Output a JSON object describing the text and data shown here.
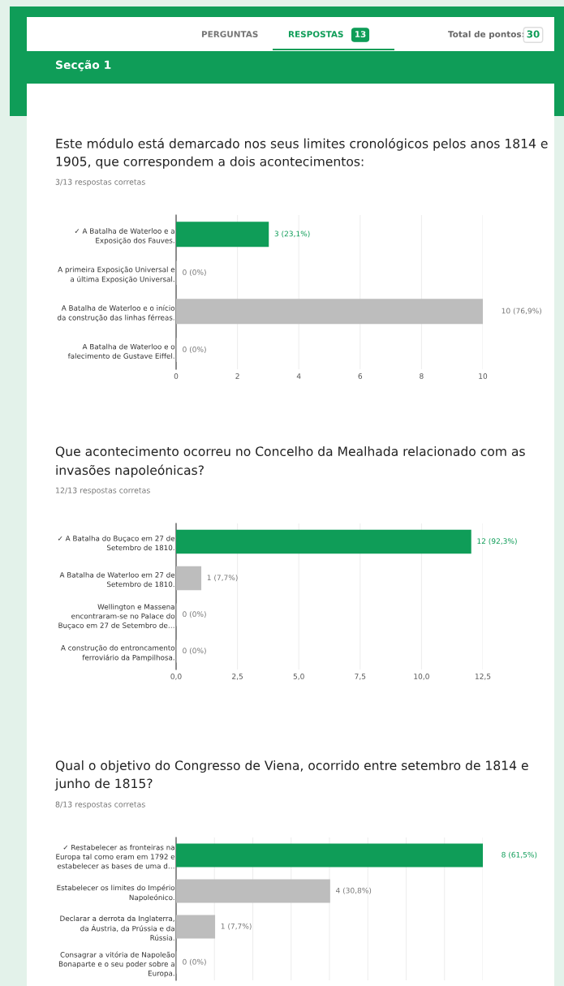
{
  "chart_data": [
    {
      "type": "bar",
      "orientation": "horizontal",
      "title": "Este módulo está demarcado nos seus limites cronológicos pelos anos 1814 e 1905, que correspondem a dois acontecimentos:",
      "subtitle": "3/13 respostas corretas",
      "annotations": [
        "PERGUNTAS",
        "RESPOSTAS",
        "13",
        "Total de pontos:",
        "30",
        "Secção 1"
      ],
      "categories": [
        "✓ A Batalha de Waterloo e a\nExposição dos Fauves.",
        "A primeira Exposição Universal e\na última Exposição Universal.",
        "A Batalha de Waterloo e o início\nda construção das linhas férreas.",
        "A Batalha de Waterloo e o\nfalecimento de Gustave Eiffel."
      ],
      "values": [
        3,
        0,
        10,
        0
      ],
      "colors": [
        "#0f9d58",
        "#bdbdbd",
        "#bdbdbd",
        "#bdbdbd"
      ],
      "value_labels": [
        "3 (23,1%)",
        "0 (0%)",
        "10 (76,9%)",
        "0 (0%)"
      ],
      "xlim": [
        0,
        10
      ],
      "xticks": [
        0,
        2,
        4,
        6,
        8,
        10
      ],
      "grid": "x"
    },
    {
      "type": "bar",
      "orientation": "horizontal",
      "title": "Que acontecimento ocorreu no Concelho da Mealhada relacionado com as invasões napoleónicas?",
      "subtitle": "12/13 respostas corretas",
      "categories": [
        "✓ A Batalha do Buçaco em 27 de\nSetembro de 1810.",
        "A Batalha de Waterloo em 27 de\nSetembro de 1810.",
        "Wellington e Massena\nencontraram-se no Palace do\nBuçaco em 27 de Setembro de…",
        "A construção do entroncamento\nferroviário da Pampilhosa."
      ],
      "values": [
        12,
        1,
        0,
        0
      ],
      "colors": [
        "#0f9d58",
        "#bdbdbd",
        "#bdbdbd",
        "#bdbdbd"
      ],
      "value_labels": [
        "12 (92,3%)",
        "1 (7,7%)",
        "0 (0%)",
        "0 (0%)"
      ],
      "xlim": [
        0,
        12.5
      ],
      "xticks": [
        {
          "value": 0,
          "label": "0,0"
        },
        {
          "value": 2.5,
          "label": "2,5"
        },
        {
          "value": 5,
          "label": "5,0"
        },
        {
          "value": 7.5,
          "label": "7,5"
        },
        {
          "value": 10,
          "label": "10,0"
        },
        {
          "value": 12.5,
          "label": "12,5"
        }
      ],
      "grid": "x"
    },
    {
      "type": "bar",
      "orientation": "horizontal",
      "title": "Qual o objetivo do Congresso de Viena, ocorrido entre setembro de 1814 e junho de 1815?",
      "subtitle": "8/13 respostas corretas",
      "categories": [
        "✓ Restabelecer as fronteiras na\nEuropa tal como eram em 1792 e\nestabelecer as bases de uma d…",
        "Estabelecer os limites do Império\nNapoleónico.",
        "Declarar a derrota da Inglaterra,\nda Áustria, da Prússia e da\nRússia.",
        "Consagrar a vitória de Napoleão\nBonaparte e o seu poder sobre a\nEuropa."
      ],
      "values": [
        8,
        4,
        1,
        0
      ],
      "colors": [
        "#0f9d58",
        "#bdbdbd",
        "#bdbdbd",
        "#bdbdbd"
      ],
      "value_labels": [
        "8 (61,5%)",
        "4 (30,8%)",
        "1 (7,7%)",
        "0 (0%)"
      ],
      "xlim": [
        0,
        8
      ],
      "xticks": [
        {
          "value": 1,
          "label": null
        },
        {
          "value": 2,
          "label": null
        },
        {
          "value": 3,
          "label": null
        },
        {
          "value": 4,
          "label": null
        },
        {
          "value": 5,
          "label": null
        },
        {
          "value": 6,
          "label": null
        },
        {
          "value": 7,
          "label": null
        },
        {
          "value": 8,
          "label": null
        }
      ],
      "grid": "x",
      "tick_labels": "y"
    }
  ]
}
